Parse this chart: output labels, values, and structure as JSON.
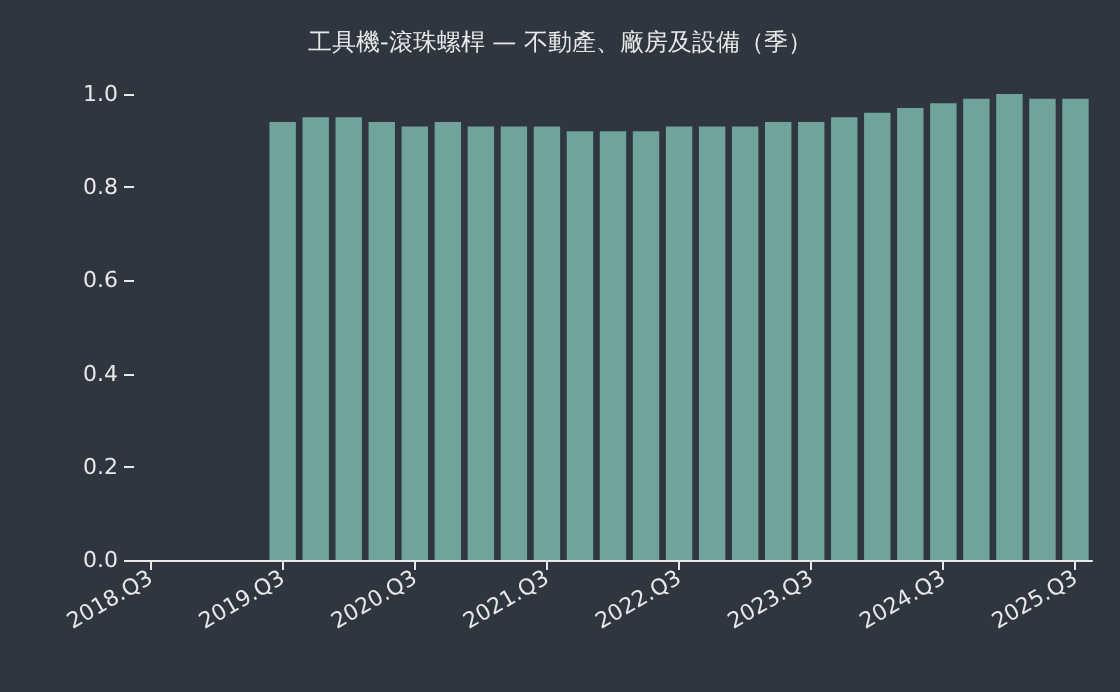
{
  "chart_data": {
    "type": "bar",
    "title": "工具機-滾珠螺桿 — 不動產、廠房及設備（季）",
    "categories": [
      "2018.Q3",
      null,
      null,
      null,
      "2019.Q3",
      null,
      null,
      null,
      "2020.Q3",
      null,
      null,
      null,
      "2021.Q3",
      null,
      null,
      null,
      "2022.Q3",
      null,
      null,
      null,
      "2023.Q3",
      null,
      null,
      null,
      "2024.Q3",
      null,
      null,
      null,
      "2025.Q3"
    ],
    "values": [
      null,
      null,
      null,
      null,
      0.94,
      0.95,
      0.95,
      0.94,
      0.93,
      0.94,
      0.93,
      0.93,
      0.93,
      0.92,
      0.92,
      0.92,
      0.93,
      0.93,
      0.93,
      0.94,
      0.94,
      0.95,
      0.96,
      0.97,
      0.98,
      0.99,
      1.0,
      0.99,
      0.99
    ],
    "color": "#6fa39b",
    "ylim": [
      0,
      1
    ],
    "yticks": [
      {
        "value": 0,
        "label": "0.0"
      },
      0.2,
      0.4,
      0.6,
      0.8,
      {
        "value": 1,
        "label": "1.0"
      }
    ],
    "grid": false
  }
}
